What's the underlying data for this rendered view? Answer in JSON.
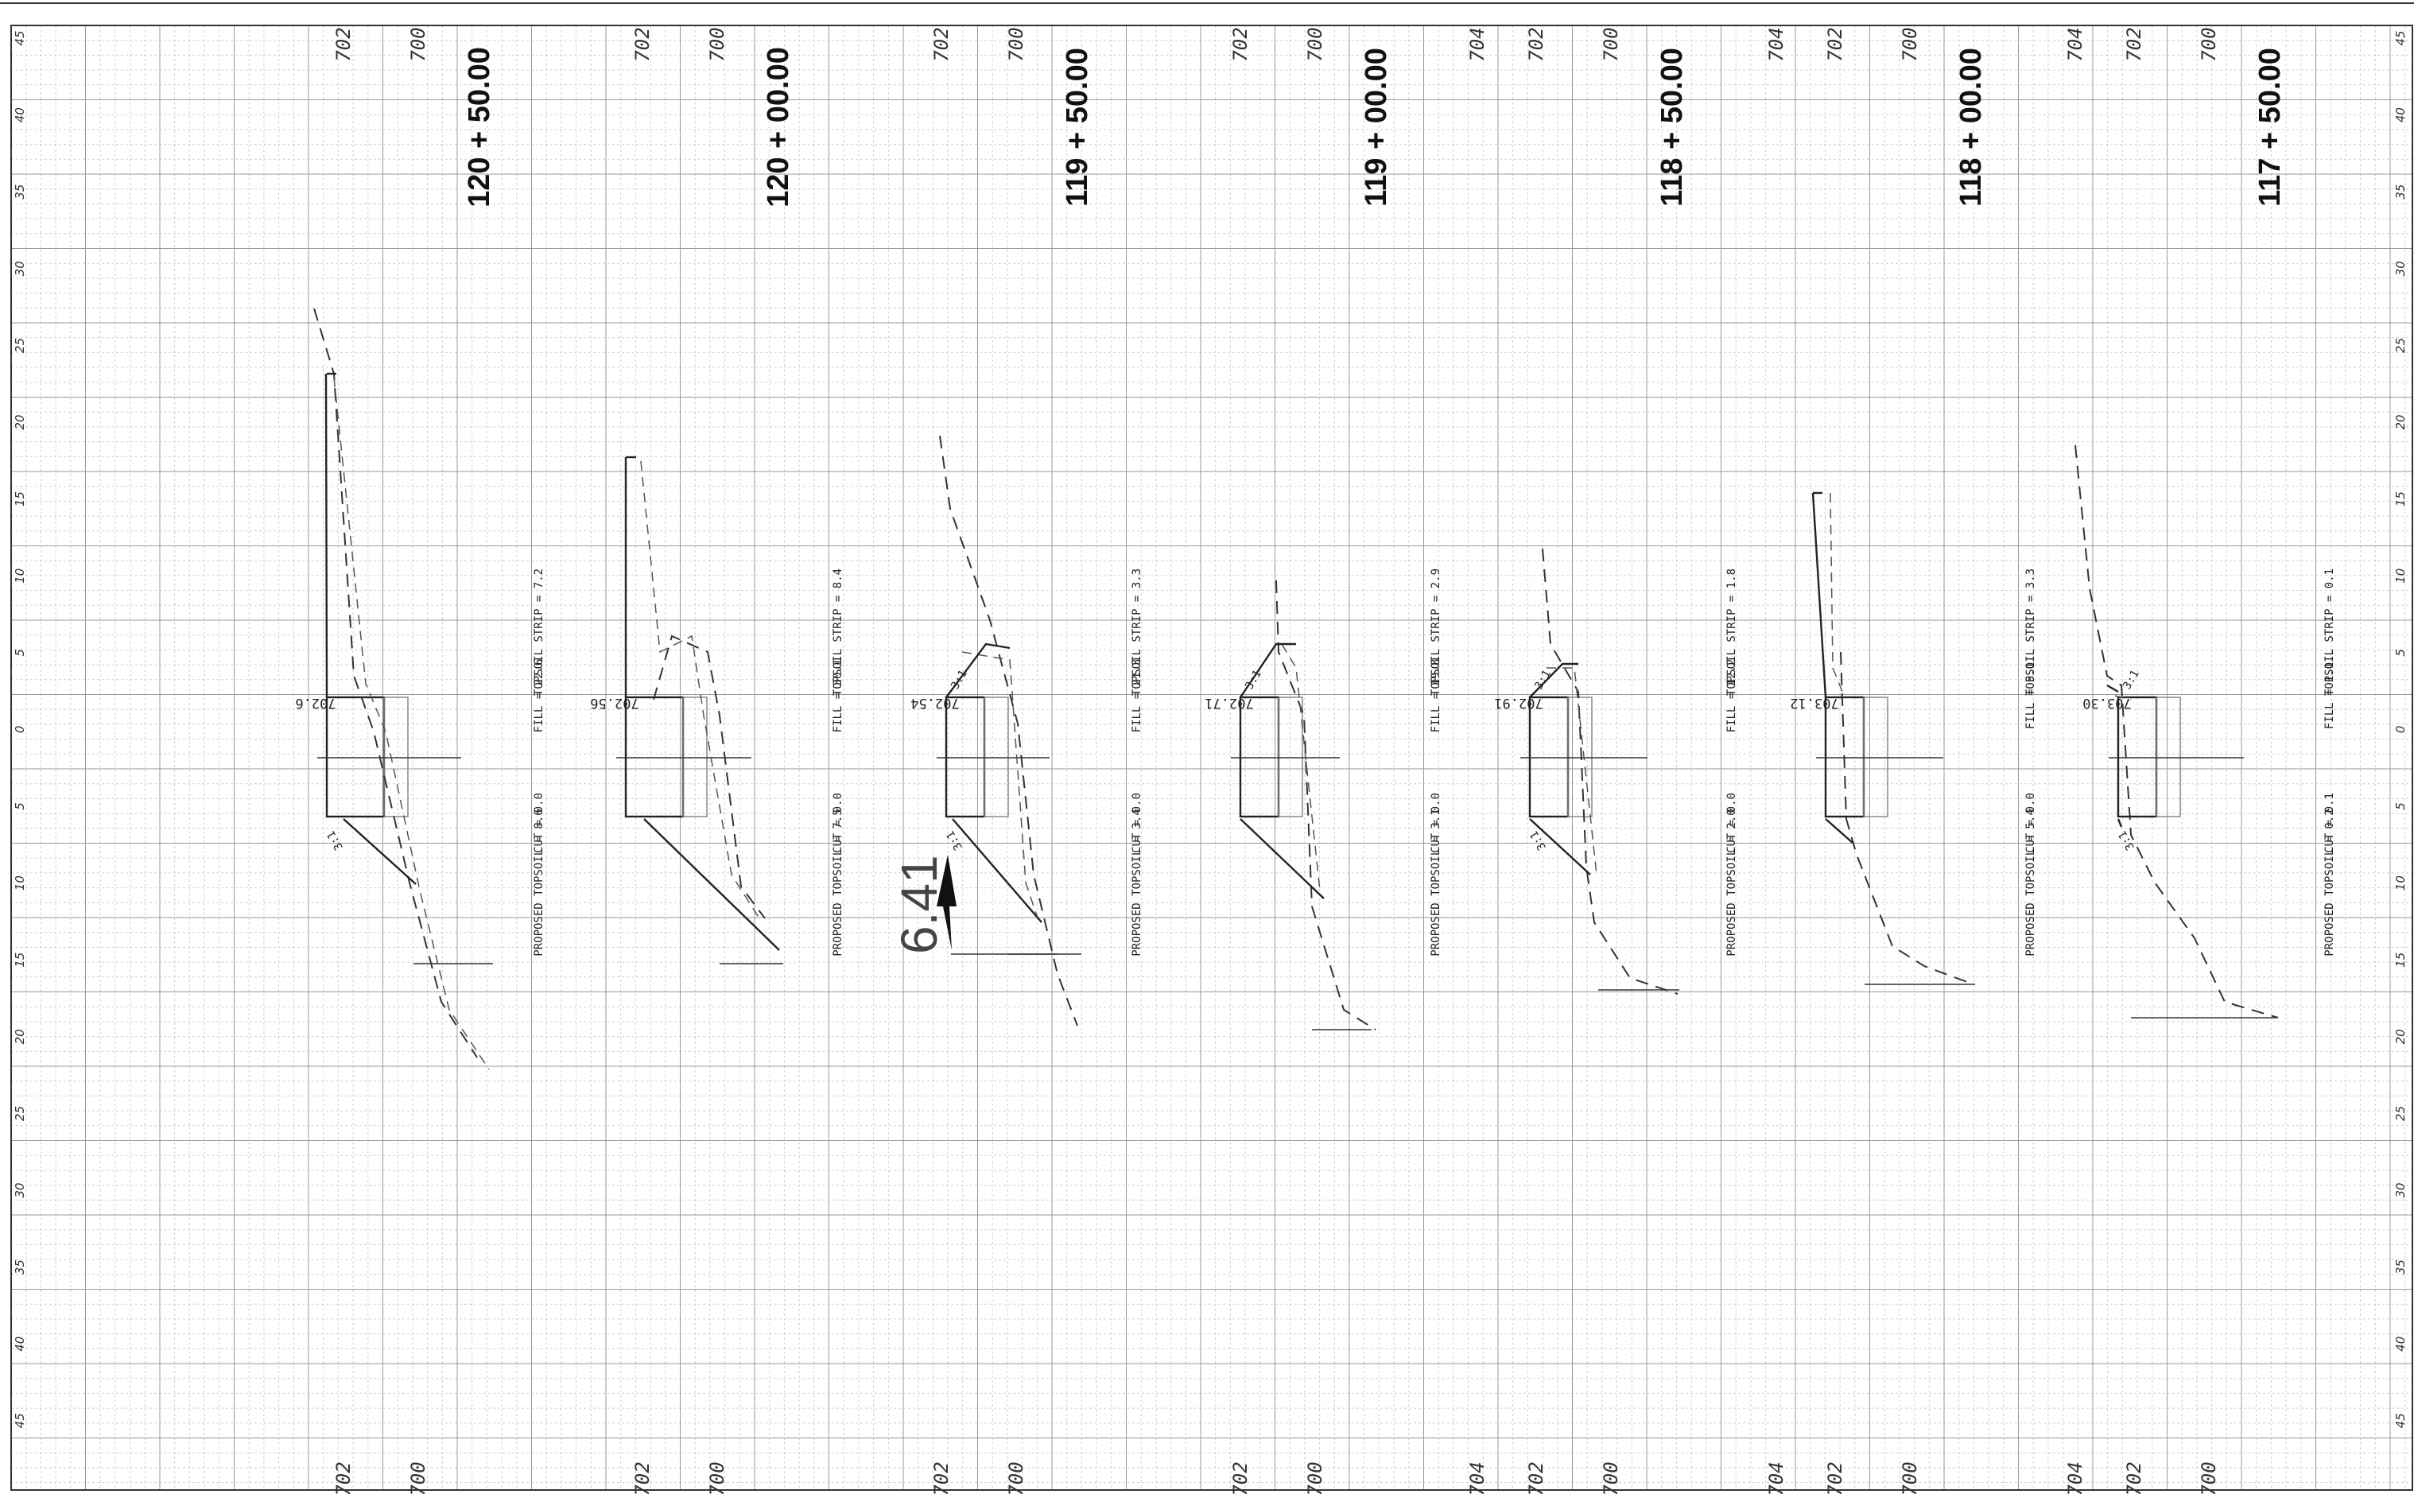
{
  "offset_labels": [
    "45",
    "40",
    "35",
    "30",
    "25",
    "20",
    "15",
    "10",
    "5",
    "0",
    "5",
    "10",
    "15",
    "20",
    "25",
    "30",
    "35",
    "40",
    "45"
  ],
  "sections": [
    {
      "station": "120 + 50.00",
      "elevation_ticks": [
        "702",
        "700"
      ],
      "cut": "CUT = 0.0",
      "fill": "FILL = 22.6",
      "proposed_topsoil": "PROPOSED TOPSOIL = 8.6",
      "topsoil_strip": "TOPSOIL STRIP = 7.2",
      "elevation": "702.6",
      "slope_upper": "",
      "slope_lower": "3:1"
    },
    {
      "station": "120 + 00.00",
      "elevation_ticks": [
        "702",
        "700"
      ],
      "cut": "CUT = 0.0",
      "fill": "FILL = 30.1",
      "proposed_topsoil": "PROPOSED TOPSOIL = 7.5",
      "topsoil_strip": "TOPSOIL STRIP = 8.4",
      "elevation": "702.56",
      "slope_upper": "",
      "slope_lower": ""
    },
    {
      "station": "119 + 50.00",
      "elevation_ticks": [
        "702",
        "700"
      ],
      "cut": "CUT = 0.0",
      "fill": "FILL = 21.3",
      "proposed_topsoil": "PROPOSED TOPSOIL = 3.4",
      "topsoil_strip": "TOPSOIL STRIP = 3.3",
      "elevation": "702.54",
      "slope_upper": "3:1",
      "slope_lower": "3:1"
    },
    {
      "station": "119 + 00.00",
      "elevation_ticks": [
        "702",
        "700"
      ],
      "cut": "CUT = 0.0",
      "fill": "FILL = 19.8",
      "proposed_topsoil": "PROPOSED TOPSOIL = 3.1",
      "topsoil_strip": "TOPSOIL STRIP = 2.9",
      "elevation": "702.71",
      "slope_upper": "3:1",
      "slope_lower": ""
    },
    {
      "station": "118 + 50.00",
      "elevation_ticks": [
        "704",
        "702",
        "700"
      ],
      "cut": "CUT = 0.0",
      "fill": "FILL = 12.2",
      "proposed_topsoil": "PROPOSED TOPSOIL = 2.0",
      "topsoil_strip": "TOPSOIL STRIP = 1.8",
      "elevation": "702.91",
      "slope_upper": "3:1",
      "slope_lower": "3:1"
    },
    {
      "station": "118 + 00.00",
      "elevation_ticks": [
        "704",
        "702",
        "700"
      ],
      "cut": "CUT = 0.0",
      "fill": "FILL = 5.1",
      "proposed_topsoil": "PROPOSED TOPSOIL = 5.4",
      "topsoil_strip": "TOPSOIL STRIP = 3.3",
      "elevation": "703.12",
      "slope_upper": "",
      "slope_lower": ""
    },
    {
      "station": "117 + 50.00",
      "elevation_ticks": [
        "704",
        "702",
        "700"
      ],
      "cut": "CUT = 0.1",
      "fill": "FILL = 1.1",
      "proposed_topsoil": "PROPOSED TOPSOIL = 0.2",
      "topsoil_strip": "TOPSOIL STRIP = 0.1",
      "elevation": "703.30",
      "slope_upper": "3:1",
      "slope_lower": "3:1"
    }
  ],
  "markup": {
    "handwritten_value": "6.41"
  }
}
